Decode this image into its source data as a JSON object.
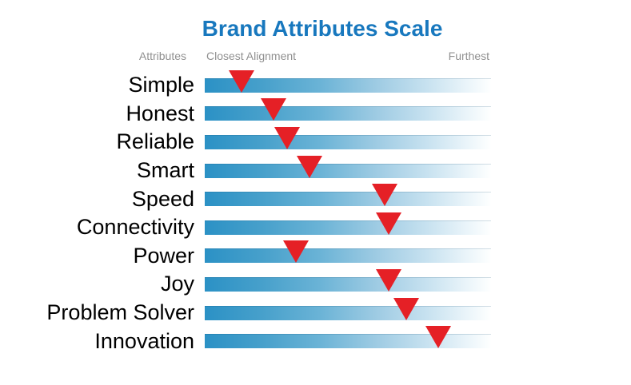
{
  "page": {
    "background": "#FFFFFF"
  },
  "chart_data": {
    "type": "bar",
    "subtype": "alignment-scale-strips-with-triangle-markers",
    "title": "Brand Attributes Scale",
    "title_color": "#1878BE",
    "column_headers": {
      "attributes": "Attributes",
      "closest": "Closest Alignment",
      "furthest": "Furthest"
    },
    "xlabel": "",
    "ylabel": "",
    "scale": {
      "min_label": "Closest Alignment",
      "max_label": "Furthest",
      "range": [
        0,
        100
      ],
      "grid": false,
      "legend": "none"
    },
    "categories": [
      "Simple",
      "Honest",
      "Reliable",
      "Smart",
      "Speed",
      "Connectivity",
      "Power",
      "Joy",
      "Problem Solver",
      "Innovation"
    ],
    "values": [
      12.8,
      24.0,
      28.8,
      36.6,
      62.8,
      64.2,
      31.8,
      64.2,
      70.4,
      81.6
    ],
    "rows": [
      {
        "label": "Simple",
        "marker_percent": 12.8
      },
      {
        "label": "Honest",
        "marker_percent": 24.0
      },
      {
        "label": "Reliable",
        "marker_percent": 28.8
      },
      {
        "label": "Smart",
        "marker_percent": 36.6
      },
      {
        "label": "Speed",
        "marker_percent": 62.8
      },
      {
        "label": "Connectivity",
        "marker_percent": 64.2
      },
      {
        "label": "Power",
        "marker_percent": 31.8
      },
      {
        "label": "Joy",
        "marker_percent": 64.2
      },
      {
        "label": "Problem Solver",
        "marker_percent": 70.4
      },
      {
        "label": "Innovation",
        "marker_percent": 81.6
      }
    ],
    "colors": {
      "marker_red": "#E52026",
      "bar_gradient_start": "#2B91C5",
      "bar_gradient_end": "#FFFFFF",
      "header_gray": "#909090",
      "label_black": "#000000"
    }
  }
}
